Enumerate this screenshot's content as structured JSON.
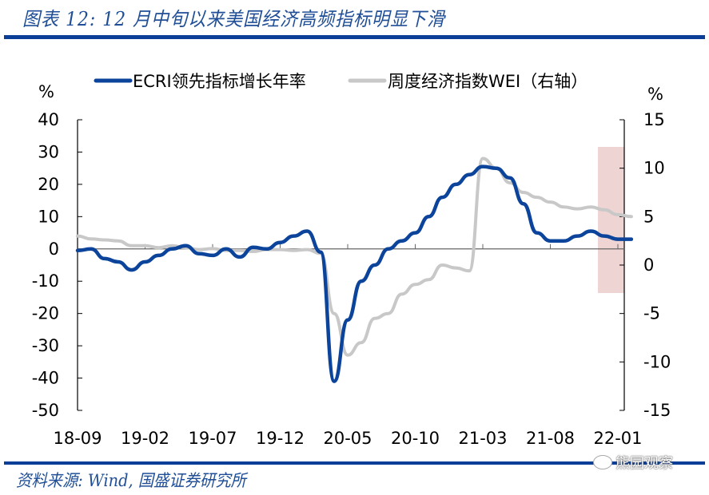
{
  "header": {
    "title": "图表 12:  12 月中旬以来美国经济高频指标明显下滑"
  },
  "footer": {
    "source": "资料来源:  Wind,  国盛证券研究所",
    "watermark": "熊园观察"
  },
  "colors": {
    "accent_rule": "#0b3e96",
    "series_ecri": "#0b449a",
    "series_wei": "#c8c8c8",
    "highlight": "#efd4d4"
  },
  "chart_data": {
    "type": "line",
    "title": "12月中旬以来美国经济高频指标明显下滑",
    "x_tick_labels": [
      "18-09",
      "19-02",
      "19-07",
      "19-12",
      "20-05",
      "20-10",
      "21-03",
      "21-08",
      "22-01"
    ],
    "left_axis": {
      "label": "%",
      "ylim": [
        -50,
        40
      ],
      "ticks": [
        40,
        30,
        20,
        10,
        0,
        -10,
        -20,
        -30,
        -40,
        -50
      ]
    },
    "right_axis": {
      "label": "%",
      "ylim": [
        -15,
        15
      ],
      "ticks": [
        15,
        10,
        5,
        0,
        -5,
        -10,
        -15
      ]
    },
    "legend": {
      "position": "top",
      "entries": [
        {
          "name": "ECRI领先指标增长年率",
          "color": "#0b449a"
        },
        {
          "name": "周度经济指数WEI（右轴）",
          "color": "#c8c8c8"
        }
      ]
    },
    "grid": false,
    "annotations": [
      {
        "type": "shaded-region",
        "x_from": "2021-12 mid",
        "x_to": "2022-02",
        "color": "#efd4d4"
      }
    ],
    "series": [
      {
        "name": "ECRI领先指标增长年率",
        "axis": "left",
        "x": [
          "2018-09",
          "2018-10",
          "2018-11",
          "2018-12",
          "2019-01",
          "2019-02",
          "2019-03",
          "2019-04",
          "2019-05",
          "2019-06",
          "2019-07",
          "2019-08",
          "2019-09",
          "2019-10",
          "2019-11",
          "2019-12",
          "2020-01",
          "2020-02",
          "2020-03",
          "2020-04",
          "2020-05",
          "2020-06",
          "2020-07",
          "2020-08",
          "2020-09",
          "2020-10",
          "2020-11",
          "2020-12",
          "2021-01",
          "2021-02",
          "2021-03",
          "2021-04",
          "2021-05",
          "2021-06",
          "2021-07",
          "2021-08",
          "2021-09",
          "2021-10",
          "2021-11",
          "2021-12",
          "2022-01",
          "2022-02"
        ],
        "values": [
          -0.5,
          0,
          -3,
          -4,
          -6.5,
          -4,
          -2,
          0,
          1,
          -1.5,
          -2,
          0,
          -2.5,
          0.5,
          0,
          2,
          4,
          5.5,
          -1,
          -41,
          -22,
          -10,
          -5,
          0,
          2.5,
          5,
          10,
          16,
          20,
          23,
          25.5,
          25,
          22,
          14,
          5,
          2.5,
          2.5,
          4,
          5.5,
          4,
          3,
          3
        ]
      },
      {
        "name": "周度经济指数WEI（右轴）",
        "axis": "right",
        "x": [
          "2018-09",
          "2018-10",
          "2018-11",
          "2018-12",
          "2019-01",
          "2019-02",
          "2019-03",
          "2019-04",
          "2019-05",
          "2019-06",
          "2019-07",
          "2019-08",
          "2019-09",
          "2019-10",
          "2019-11",
          "2019-12",
          "2020-01",
          "2020-02",
          "2020-03",
          "2020-04",
          "2020-05",
          "2020-06",
          "2020-07",
          "2020-08",
          "2020-09",
          "2020-10",
          "2020-11",
          "2020-12",
          "2021-01",
          "2021-02",
          "2021-03",
          "2021-04",
          "2021-05",
          "2021-06",
          "2021-07",
          "2021-08",
          "2021-09",
          "2021-10",
          "2021-11",
          "2021-12",
          "2022-01",
          "2022-02"
        ],
        "values": [
          3,
          2.7,
          2.6,
          2.5,
          2,
          2,
          1.8,
          2,
          1.8,
          1.6,
          1.7,
          1.5,
          1.5,
          1.4,
          1.6,
          1.6,
          1.5,
          1.6,
          1.2,
          -5,
          -9.3,
          -8,
          -5.5,
          -5,
          -3,
          -2,
          -1.5,
          0,
          -0.3,
          -0.6,
          11,
          10,
          8.5,
          7.5,
          7,
          6.5,
          6,
          5.8,
          6,
          5.7,
          5.2,
          5
        ]
      }
    ]
  }
}
